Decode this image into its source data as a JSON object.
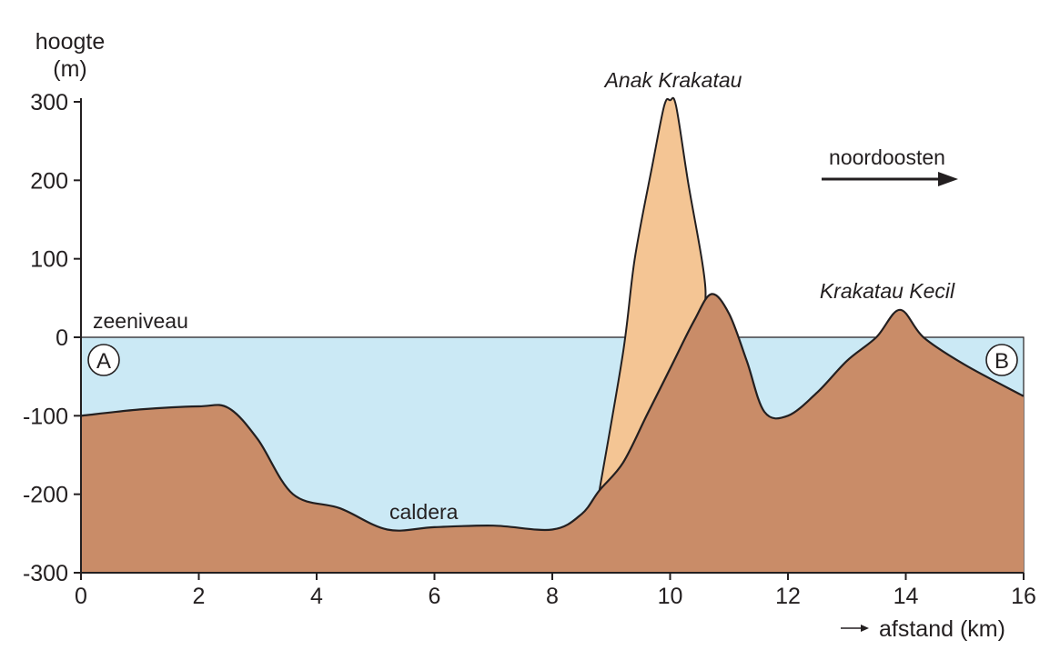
{
  "y_axis": {
    "title_line1": "hoogte",
    "title_line2": "(m)",
    "ticks": [
      "300",
      "200",
      "100",
      "0",
      "-100",
      "-200",
      "-300"
    ]
  },
  "x_axis": {
    "title": "afstand (km)",
    "ticks": [
      "0",
      "2",
      "4",
      "6",
      "8",
      "10",
      "12",
      "14",
      "16"
    ]
  },
  "labels": {
    "sea_level": "zeeniveau",
    "caldera": "caldera",
    "anak_krakatau": "Anak Krakatau",
    "krakatau_kecil": "Krakatau Kecil",
    "direction": "noordoosten",
    "point_a": "A",
    "point_b": "B"
  },
  "colors": {
    "water": "#cbe9f5",
    "bedrock": "#c98c68",
    "new_volcano": "#f4c594",
    "outline": "#231f20"
  },
  "chart_data": {
    "type": "area",
    "xlabel": "afstand (km)",
    "ylabel": "hoogte (m)",
    "xlim": [
      0,
      16
    ],
    "ylim": [
      -300,
      300
    ],
    "sea_level": 0,
    "series": [
      {
        "x": [
          0,
          1,
          2,
          2.5,
          3,
          3.6,
          4.4,
          5.2,
          6,
          7,
          8,
          8.5,
          8.8,
          9.2,
          9.6,
          10,
          10.4,
          10.7,
          11,
          11.3,
          11.6,
          12,
          12.5,
          13,
          13.5,
          13.9,
          14.3,
          15,
          16
        ],
        "y": [
          -100,
          -92,
          -88,
          -90,
          -130,
          -200,
          -218,
          -245,
          -242,
          -240,
          -245,
          -225,
          -195,
          -160,
          -100,
          -40,
          20,
          55,
          30,
          -30,
          -95,
          -100,
          -70,
          -30,
          0,
          35,
          0,
          -35,
          -75
        ]
      },
      {
        "x": [
          8.8,
          9.2,
          9.4,
          9.7,
          9.9,
          10,
          10.1,
          10.3,
          10.6,
          10.4,
          10,
          9.6,
          9.2,
          8.8
        ],
        "y": [
          -195,
          -20,
          100,
          220,
          295,
          302,
          295,
          200,
          60,
          20,
          -40,
          -100,
          -160,
          -195
        ]
      }
    ]
  }
}
